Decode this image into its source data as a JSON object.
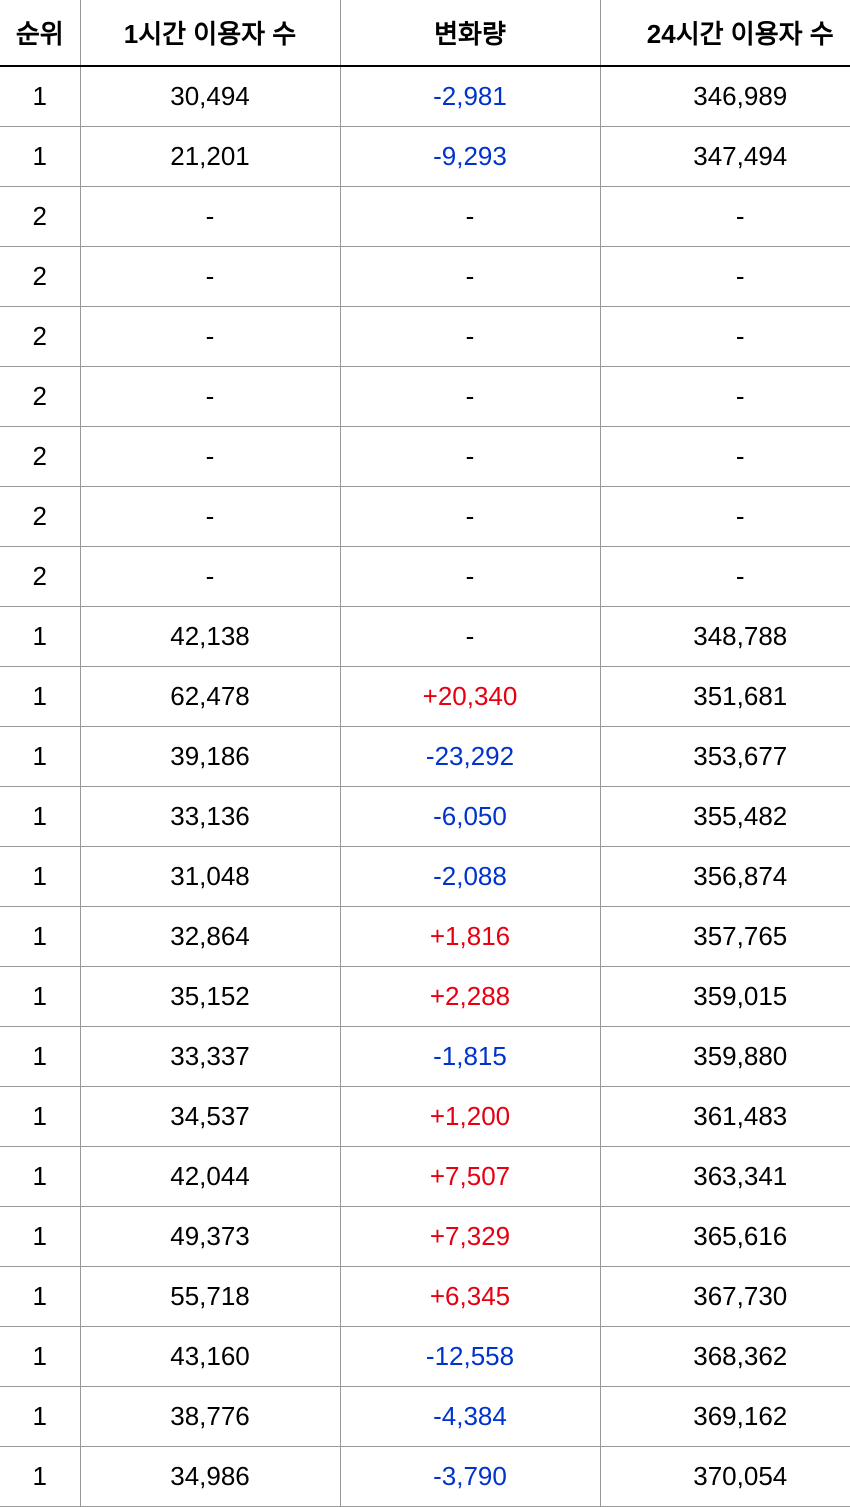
{
  "table": {
    "columns": [
      "순위",
      "1시간 이용자 수",
      "변화량",
      "24시간 이용자 수"
    ],
    "column_last_visible": "24시간 이용자 ",
    "column_classes": [
      "col-rank",
      "col-1h",
      "col-change",
      "col-24h"
    ],
    "colors": {
      "positive": "#e60012",
      "negative": "#0033cc",
      "text": "#000000",
      "border": "#999999",
      "header_border": "#000000",
      "background": "#ffffff"
    },
    "font_size": 26,
    "header_font_weight": 700,
    "rows": [
      {
        "rank": "1",
        "users_1h": "30,494",
        "change": "-2,981",
        "change_sign": "neg",
        "users_24h": "346,989"
      },
      {
        "rank": "1",
        "users_1h": "21,201",
        "change": "-9,293",
        "change_sign": "neg",
        "users_24h": "347,494"
      },
      {
        "rank": "2",
        "users_1h": "-",
        "change": "-",
        "change_sign": "none",
        "users_24h": "-"
      },
      {
        "rank": "2",
        "users_1h": "-",
        "change": "-",
        "change_sign": "none",
        "users_24h": "-"
      },
      {
        "rank": "2",
        "users_1h": "-",
        "change": "-",
        "change_sign": "none",
        "users_24h": "-"
      },
      {
        "rank": "2",
        "users_1h": "-",
        "change": "-",
        "change_sign": "none",
        "users_24h": "-"
      },
      {
        "rank": "2",
        "users_1h": "-",
        "change": "-",
        "change_sign": "none",
        "users_24h": "-"
      },
      {
        "rank": "2",
        "users_1h": "-",
        "change": "-",
        "change_sign": "none",
        "users_24h": "-"
      },
      {
        "rank": "2",
        "users_1h": "-",
        "change": "-",
        "change_sign": "none",
        "users_24h": "-"
      },
      {
        "rank": "1",
        "users_1h": "42,138",
        "change": "-",
        "change_sign": "none",
        "users_24h": "348,788"
      },
      {
        "rank": "1",
        "users_1h": "62,478",
        "change": "+20,340",
        "change_sign": "pos",
        "users_24h": "351,681"
      },
      {
        "rank": "1",
        "users_1h": "39,186",
        "change": "-23,292",
        "change_sign": "neg",
        "users_24h": "353,677"
      },
      {
        "rank": "1",
        "users_1h": "33,136",
        "change": "-6,050",
        "change_sign": "neg",
        "users_24h": "355,482"
      },
      {
        "rank": "1",
        "users_1h": "31,048",
        "change": "-2,088",
        "change_sign": "neg",
        "users_24h": "356,874"
      },
      {
        "rank": "1",
        "users_1h": "32,864",
        "change": "+1,816",
        "change_sign": "pos",
        "users_24h": "357,765"
      },
      {
        "rank": "1",
        "users_1h": "35,152",
        "change": "+2,288",
        "change_sign": "pos",
        "users_24h": "359,015"
      },
      {
        "rank": "1",
        "users_1h": "33,337",
        "change": "-1,815",
        "change_sign": "neg",
        "users_24h": "359,880"
      },
      {
        "rank": "1",
        "users_1h": "34,537",
        "change": "+1,200",
        "change_sign": "pos",
        "users_24h": "361,483"
      },
      {
        "rank": "1",
        "users_1h": "42,044",
        "change": "+7,507",
        "change_sign": "pos",
        "users_24h": "363,341"
      },
      {
        "rank": "1",
        "users_1h": "49,373",
        "change": "+7,329",
        "change_sign": "pos",
        "users_24h": "365,616"
      },
      {
        "rank": "1",
        "users_1h": "55,718",
        "change": "+6,345",
        "change_sign": "pos",
        "users_24h": "367,730"
      },
      {
        "rank": "1",
        "users_1h": "43,160",
        "change": "-12,558",
        "change_sign": "neg",
        "users_24h": "368,362"
      },
      {
        "rank": "1",
        "users_1h": "38,776",
        "change": "-4,384",
        "change_sign": "neg",
        "users_24h": "369,162"
      },
      {
        "rank": "1",
        "users_1h": "34,986",
        "change": "-3,790",
        "change_sign": "neg",
        "users_24h": "370,054"
      }
    ]
  }
}
